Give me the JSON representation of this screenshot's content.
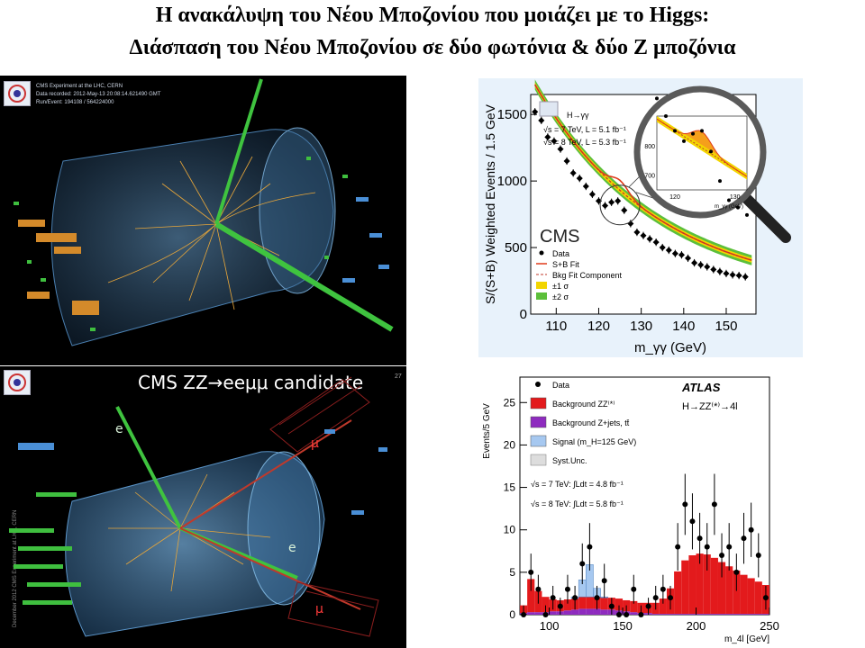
{
  "slide": {
    "title_line1": "Η ανακάλυψη του Νέου Μποζονίου που μοιάζει με το Higgs:",
    "title_line2": "Διάσπαση του Νέου Μποζονίου σε δύο φωτόνια & δύο Ζ μποζόνια"
  },
  "cms_event_top": {
    "header": [
      "CMS Experiment at the LHC, CERN",
      "Data recorded: 2012-May-13 20:08:14.621490 GMT",
      "Run/Event: 194108 / 564224000"
    ]
  },
  "cms_event_bottom": {
    "caption": "CMS  ZZ→eeμμ  candidate",
    "corner_number": "27",
    "label_e1": "e",
    "label_e2": "e",
    "label_mu1": "μ",
    "label_mu2": "μ",
    "side_text": "December 2012 CMS Experiment at LHC, CERN"
  },
  "chart_data": [
    {
      "type": "scatter",
      "experiment_label": "CMS",
      "process_label": "H→γγ",
      "energy_labels": [
        "√s = 7 TeV, L = 5.1 fb⁻¹",
        "√s = 8 TeV, L = 5.3 fb⁻¹"
      ],
      "xlabel": "m_γγ (GeV)",
      "ylabel": "S/(S+B) Weighted Events / 1.5 GeV",
      "xlim": [
        104,
        157
      ],
      "ylim": [
        0,
        1650
      ],
      "x_ticks": [
        110,
        120,
        130,
        140,
        150
      ],
      "y_ticks": [
        0,
        500,
        1000,
        1500
      ],
      "legend": [
        "Data",
        "S+B Fit",
        "Bkg Fit Component",
        "±1 σ",
        "±2 σ"
      ],
      "legend_position": "bottom-left",
      "data": {
        "x": [
          105,
          106.5,
          108,
          109.5,
          111,
          112.5,
          114,
          115.5,
          117,
          118.5,
          120,
          121.5,
          123,
          124.5,
          126,
          127.5,
          129,
          130.5,
          132,
          133.5,
          135,
          136.5,
          138,
          139.5,
          141,
          142.5,
          144,
          145.5,
          147,
          148.5,
          150,
          151.5,
          153,
          154.5
        ],
        "y": [
          1520,
          1455,
          1330,
          1300,
          1240,
          1150,
          1060,
          1020,
          960,
          900,
          850,
          815,
          840,
          850,
          780,
          680,
          615,
          590,
          565,
          540,
          500,
          480,
          455,
          445,
          420,
          385,
          370,
          355,
          335,
          320,
          305,
          295,
          290,
          280
        ]
      },
      "magnifier": {
        "xlim": [
          117,
          132
        ],
        "x_ticks": [
          120,
          130
        ],
        "ylim": [
          650,
          900
        ],
        "y_ticks": [
          700,
          800
        ],
        "xlabel": "m_γγ (GeV)"
      }
    },
    {
      "type": "bar",
      "experiment_label": "ATLAS",
      "process_label": "H→ZZ⁽*⁾→4l",
      "xlabel": "m_4l [GeV]",
      "ylabel": "Events/5 GeV",
      "xlim": [
        80,
        250
      ],
      "ylim": [
        0,
        28
      ],
      "x_ticks": [
        100,
        150,
        200,
        250
      ],
      "y_ticks": [
        0,
        5,
        10,
        15,
        20,
        25
      ],
      "legend": [
        "Data",
        "Background ZZ⁽*⁾",
        "Background Z+jets, tt̄",
        "Signal (m_H=125 GeV)",
        "Syst.Unc."
      ],
      "legend_position": "top-left",
      "luminosity": [
        "√s = 7 TeV: ∫Ldt = 4.8 fb⁻¹",
        "√s = 8 TeV: ∫Ldt = 5.8 fb⁻¹"
      ],
      "colors": {
        "zz": "#e31a1c",
        "zjets": "#8e2bbf",
        "signal": "#a6c8f0"
      },
      "bins": [
        82.5,
        87.5,
        92.5,
        97.5,
        102.5,
        107.5,
        112.5,
        117.5,
        122.5,
        127.5,
        132.5,
        137.5,
        142.5,
        147.5,
        152.5,
        157.5,
        162.5,
        167.5,
        172.5,
        177.5,
        182.5,
        187.5,
        192.5,
        197.5,
        202.5,
        207.5,
        212.5,
        217.5,
        222.5,
        227.5,
        232.5,
        237.5,
        242.5,
        247.5
      ],
      "zz": [
        0.9,
        3.9,
        2.5,
        1.8,
        1.4,
        1.3,
        1.3,
        1.3,
        1.4,
        1.4,
        1.4,
        1.4,
        1.4,
        1.4,
        1.3,
        1.3,
        1.2,
        1.2,
        1.3,
        1.8,
        3.0,
        5.0,
        6.3,
        6.9,
        7.1,
        7.0,
        6.6,
        6.1,
        5.6,
        5.1,
        4.6,
        4.2,
        3.8,
        3.4
      ],
      "zjets": [
        0.2,
        0.3,
        0.3,
        0.3,
        0.4,
        0.4,
        0.5,
        0.6,
        0.7,
        0.7,
        0.7,
        0.6,
        0.6,
        0.5,
        0.4,
        0.3,
        0.2,
        0.2,
        0.1,
        0.1,
        0.1,
        0.1,
        0.1,
        0.1,
        0.1,
        0.1,
        0.1,
        0.1,
        0.1,
        0.1,
        0.1,
        0.1,
        0.1,
        0.1
      ],
      "signal": [
        0,
        0,
        0,
        0,
        0,
        0,
        0,
        0.2,
        2.0,
        3.8,
        1.0,
        0.1,
        0,
        0,
        0,
        0,
        0,
        0,
        0,
        0,
        0,
        0,
        0,
        0,
        0,
        0,
        0,
        0,
        0,
        0,
        0,
        0,
        0,
        0
      ],
      "data_points": [
        {
          "x": 82.5,
          "y": 0,
          "err": 1.1
        },
        {
          "x": 87.5,
          "y": 5,
          "err": 2.2
        },
        {
          "x": 92.5,
          "y": 3,
          "err": 1.7
        },
        {
          "x": 97.5,
          "y": 0,
          "err": 1.1
        },
        {
          "x": 102.5,
          "y": 2,
          "err": 1.4
        },
        {
          "x": 107.5,
          "y": 1,
          "err": 1.0
        },
        {
          "x": 112.5,
          "y": 3,
          "err": 1.7
        },
        {
          "x": 117.5,
          "y": 2,
          "err": 1.4
        },
        {
          "x": 122.5,
          "y": 6,
          "err": 2.4
        },
        {
          "x": 127.5,
          "y": 8,
          "err": 2.8
        },
        {
          "x": 132.5,
          "y": 2,
          "err": 1.4
        },
        {
          "x": 137.5,
          "y": 4,
          "err": 2.0
        },
        {
          "x": 142.5,
          "y": 1,
          "err": 1.0
        },
        {
          "x": 147.5,
          "y": 0,
          "err": 1.1
        },
        {
          "x": 152.5,
          "y": 0,
          "err": 1.1
        },
        {
          "x": 157.5,
          "y": 3,
          "err": 1.7
        },
        {
          "x": 162.5,
          "y": 0,
          "err": 1.1
        },
        {
          "x": 167.5,
          "y": 1,
          "err": 1.0
        },
        {
          "x": 172.5,
          "y": 2,
          "err": 1.4
        },
        {
          "x": 177.5,
          "y": 3,
          "err": 1.7
        },
        {
          "x": 182.5,
          "y": 2,
          "err": 1.4
        },
        {
          "x": 187.5,
          "y": 8,
          "err": 2.8
        },
        {
          "x": 192.5,
          "y": 13,
          "err": 3.6
        },
        {
          "x": 197.5,
          "y": 11,
          "err": 3.3
        },
        {
          "x": 202.5,
          "y": 9,
          "err": 3.0
        },
        {
          "x": 207.5,
          "y": 8,
          "err": 2.8
        },
        {
          "x": 212.5,
          "y": 13,
          "err": 3.6
        },
        {
          "x": 217.5,
          "y": 7,
          "err": 2.6
        },
        {
          "x": 222.5,
          "y": 8,
          "err": 2.8
        },
        {
          "x": 227.5,
          "y": 5,
          "err": 2.2
        },
        {
          "x": 232.5,
          "y": 9,
          "err": 3.0
        },
        {
          "x": 237.5,
          "y": 10,
          "err": 3.2
        },
        {
          "x": 242.5,
          "y": 7,
          "err": 2.6
        },
        {
          "x": 247.5,
          "y": 2,
          "err": 1.4
        }
      ]
    }
  ]
}
